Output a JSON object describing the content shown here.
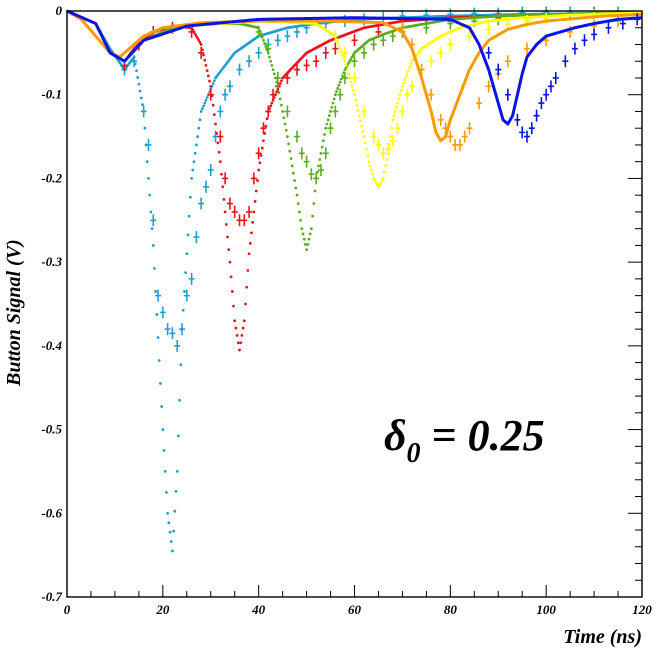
{
  "chart_data": {
    "type": "line",
    "xlabel": "Time (ns)",
    "ylabel": "Button Signal (V)",
    "xlim": [
      0,
      120
    ],
    "ylim": [
      -0.7,
      0
    ],
    "xticks": [
      "0",
      "20",
      "40",
      "60",
      "80",
      "100",
      "120"
    ],
    "yticks": [
      "0",
      "-0.1",
      "-0.2",
      "-0.3",
      "-0.4",
      "-0.5",
      "-0.6",
      "-0.7"
    ],
    "annotation": {
      "symbol": "δ",
      "subscript": "0",
      "text": " = 0.25"
    },
    "grid": false,
    "legend": "none",
    "colors": {
      "axis": "#000000",
      "background": "#ffffff"
    },
    "series": [
      {
        "color": "#1e9fd4",
        "style": "dotted",
        "sim_x": [
          0,
          6,
          9,
          12,
          14,
          16,
          18,
          20,
          21,
          22,
          23,
          24,
          26,
          28,
          31,
          35,
          40,
          46,
          52,
          60,
          70,
          80,
          95,
          120
        ],
        "sim_y": [
          0,
          -0.015,
          -0.045,
          -0.07,
          -0.055,
          -0.12,
          -0.28,
          -0.5,
          -0.6,
          -0.645,
          -0.55,
          -0.38,
          -0.2,
          -0.12,
          -0.08,
          -0.05,
          -0.03,
          -0.02,
          -0.015,
          -0.01,
          -0.008,
          -0.006,
          -0.004,
          -0.002
        ],
        "meas_x": [
          12,
          14,
          16,
          17,
          18,
          19,
          20,
          21,
          22,
          23,
          24,
          25,
          26,
          27,
          28,
          29,
          30,
          31,
          32,
          33,
          34,
          36,
          38,
          40,
          42,
          44,
          46,
          48,
          50,
          54,
          58,
          62,
          66,
          70,
          75,
          80,
          85,
          90,
          95,
          100,
          105,
          110,
          115
        ],
        "meas_y": [
          -0.07,
          -0.06,
          -0.12,
          -0.16,
          -0.25,
          -0.34,
          -0.36,
          -0.38,
          -0.385,
          -0.4,
          -0.38,
          -0.34,
          -0.32,
          -0.27,
          -0.23,
          -0.21,
          -0.19,
          -0.15,
          -0.12,
          -0.1,
          -0.09,
          -0.07,
          -0.06,
          -0.05,
          -0.04,
          -0.035,
          -0.03,
          -0.025,
          -0.02,
          -0.015,
          -0.012,
          -0.01,
          -0.008,
          -0.006,
          -0.005,
          -0.004,
          -0.003,
          -0.003,
          -0.002,
          -0.002,
          -0.002,
          -0.002,
          -0.002
        ]
      },
      {
        "color": "#e8141a",
        "style": "dotted",
        "sim_x": [
          0,
          6,
          9,
          12,
          14,
          18,
          22,
          26,
          28,
          30,
          32,
          34,
          35,
          36,
          37,
          38,
          40,
          42,
          45,
          50,
          55,
          62,
          70,
          80,
          95,
          120
        ],
        "sim_y": [
          0,
          -0.015,
          -0.05,
          -0.06,
          -0.045,
          -0.025,
          -0.018,
          -0.02,
          -0.04,
          -0.09,
          -0.18,
          -0.3,
          -0.37,
          -0.405,
          -0.37,
          -0.29,
          -0.19,
          -0.12,
          -0.08,
          -0.05,
          -0.035,
          -0.02,
          -0.012,
          -0.008,
          -0.005,
          -0.002
        ],
        "meas_x": [
          12,
          15,
          18,
          22,
          26,
          28,
          30,
          32,
          33,
          34,
          35,
          36,
          37,
          38,
          39,
          40,
          41,
          42,
          43,
          44,
          46,
          48,
          50,
          52,
          54,
          56,
          60,
          65,
          70,
          75,
          80,
          90,
          100,
          110
        ],
        "meas_y": [
          -0.065,
          -0.04,
          -0.025,
          -0.02,
          -0.025,
          -0.05,
          -0.1,
          -0.15,
          -0.2,
          -0.23,
          -0.24,
          -0.25,
          -0.25,
          -0.24,
          -0.2,
          -0.17,
          -0.14,
          -0.12,
          -0.1,
          -0.09,
          -0.08,
          -0.07,
          -0.065,
          -0.06,
          -0.05,
          -0.045,
          -0.035,
          -0.025,
          -0.02,
          -0.015,
          -0.012,
          -0.008,
          -0.005,
          -0.003
        ]
      },
      {
        "color": "#5aad1e",
        "style": "dotted",
        "sim_x": [
          0,
          6,
          9,
          12,
          16,
          22,
          30,
          36,
          40,
          42,
          44,
          46,
          48,
          49,
          50,
          51,
          52,
          54,
          56,
          58,
          60,
          63,
          66,
          70,
          75,
          80,
          90,
          100,
          120
        ],
        "sim_y": [
          0,
          -0.015,
          -0.05,
          -0.06,
          -0.035,
          -0.02,
          -0.015,
          -0.015,
          -0.02,
          -0.05,
          -0.09,
          -0.15,
          -0.22,
          -0.26,
          -0.285,
          -0.26,
          -0.2,
          -0.14,
          -0.1,
          -0.07,
          -0.05,
          -0.035,
          -0.028,
          -0.02,
          -0.015,
          -0.01,
          -0.006,
          -0.004,
          -0.002
        ],
        "meas_x": [
          40,
          42,
          44,
          46,
          48,
          49,
          50,
          51,
          52,
          53,
          54,
          55,
          56,
          57,
          58,
          60,
          62,
          64,
          66,
          68,
          70,
          75,
          80,
          85,
          90,
          100,
          110
        ],
        "meas_y": [
          -0.025,
          -0.045,
          -0.08,
          -0.12,
          -0.15,
          -0.17,
          -0.18,
          -0.195,
          -0.2,
          -0.19,
          -0.17,
          -0.14,
          -0.12,
          -0.1,
          -0.08,
          -0.06,
          -0.05,
          -0.04,
          -0.035,
          -0.03,
          -0.025,
          -0.02,
          -0.015,
          -0.012,
          -0.01,
          -0.007,
          -0.004
        ]
      },
      {
        "color": "#ffff00",
        "style": "dotted",
        "sim_x": [
          0,
          6,
          9,
          12,
          16,
          25,
          40,
          52,
          56,
          58,
          60,
          62,
          63,
          64,
          65,
          66,
          67,
          68,
          70,
          72,
          74,
          78,
          82,
          88,
          95,
          105,
          120
        ],
        "sim_y": [
          0,
          -0.015,
          -0.05,
          -0.06,
          -0.035,
          -0.018,
          -0.012,
          -0.015,
          -0.03,
          -0.06,
          -0.1,
          -0.15,
          -0.18,
          -0.2,
          -0.21,
          -0.2,
          -0.17,
          -0.13,
          -0.09,
          -0.06,
          -0.045,
          -0.03,
          -0.02,
          -0.012,
          -0.008,
          -0.005,
          -0.002
        ],
        "meas_x": [
          56,
          58,
          60,
          62,
          64,
          65,
          66,
          67,
          68,
          69,
          70,
          71,
          72,
          74,
          76,
          78,
          80,
          84,
          88,
          92,
          96,
          100,
          110
        ],
        "meas_y": [
          -0.03,
          -0.05,
          -0.08,
          -0.12,
          -0.15,
          -0.16,
          -0.17,
          -0.165,
          -0.155,
          -0.14,
          -0.12,
          -0.1,
          -0.09,
          -0.07,
          -0.06,
          -0.05,
          -0.04,
          -0.03,
          -0.022,
          -0.016,
          -0.012,
          -0.009,
          -0.005
        ]
      },
      {
        "color": "#ff9a00",
        "style": "solid",
        "sim_x": [
          0,
          3,
          6,
          9,
          11,
          13,
          16,
          20,
          28,
          40,
          55,
          66,
          70,
          72,
          74,
          76,
          77,
          78,
          79,
          80,
          82,
          84,
          86,
          88,
          92,
          96,
          100,
          106,
          112,
          120
        ],
        "sim_y": [
          0,
          -0.01,
          -0.03,
          -0.05,
          -0.055,
          -0.045,
          -0.03,
          -0.02,
          -0.014,
          -0.012,
          -0.012,
          -0.014,
          -0.025,
          -0.045,
          -0.08,
          -0.12,
          -0.145,
          -0.155,
          -0.15,
          -0.13,
          -0.1,
          -0.07,
          -0.05,
          -0.035,
          -0.022,
          -0.016,
          -0.012,
          -0.009,
          -0.006,
          -0.004
        ],
        "meas_x": [
          70,
          72,
          74,
          76,
          78,
          79,
          80,
          81,
          82,
          83,
          84,
          86,
          88,
          90,
          92,
          96,
          100,
          105,
          110,
          115
        ],
        "meas_y": [
          -0.02,
          -0.04,
          -0.07,
          -0.1,
          -0.13,
          -0.14,
          -0.15,
          -0.16,
          -0.16,
          -0.15,
          -0.14,
          -0.11,
          -0.09,
          -0.075,
          -0.06,
          -0.045,
          -0.035,
          -0.025,
          -0.018,
          -0.012
        ]
      },
      {
        "color": "#0a14e6",
        "style": "solid",
        "sim_x": [
          0,
          6,
          9,
          12,
          16,
          25,
          40,
          60,
          80,
          84,
          86,
          88,
          90,
          91,
          92,
          93,
          94,
          95,
          96,
          98,
          100,
          103,
          106,
          110,
          115,
          120
        ],
        "sim_y": [
          0,
          -0.015,
          -0.05,
          -0.06,
          -0.035,
          -0.018,
          -0.01,
          -0.008,
          -0.01,
          -0.02,
          -0.04,
          -0.07,
          -0.11,
          -0.13,
          -0.135,
          -0.125,
          -0.1,
          -0.075,
          -0.055,
          -0.04,
          -0.03,
          -0.025,
          -0.02,
          -0.015,
          -0.01,
          -0.008
        ],
        "meas_x": [
          88,
          90,
          92,
          94,
          95,
          96,
          97,
          98,
          99,
          100,
          101,
          102,
          104,
          106,
          108,
          110,
          113,
          116,
          119
        ],
        "meas_y": [
          -0.05,
          -0.07,
          -0.1,
          -0.13,
          -0.145,
          -0.15,
          -0.14,
          -0.125,
          -0.11,
          -0.1,
          -0.09,
          -0.08,
          -0.06,
          -0.045,
          -0.035,
          -0.028,
          -0.02,
          -0.015,
          -0.01
        ]
      }
    ]
  }
}
